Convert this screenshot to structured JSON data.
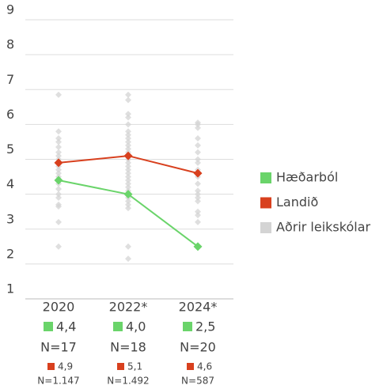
{
  "chart_data": {
    "type": "line",
    "categories": [
      "2020",
      "2022*",
      "2024*"
    ],
    "ylim": [
      1,
      9
    ],
    "yticks": [
      1,
      2,
      3,
      4,
      5,
      6,
      7,
      8,
      9
    ],
    "grid": true,
    "legend": "right",
    "series": [
      {
        "name": "Hæðarból",
        "color": "#6ad46a",
        "values": [
          4.4,
          4.0,
          2.5
        ],
        "value_labels": [
          "4,4",
          "4,0",
          "2,5"
        ],
        "n": [
          "N=17",
          "N=18",
          "N=20"
        ]
      },
      {
        "name": "Landið",
        "color": "#d8401e",
        "values": [
          4.9,
          5.1,
          4.6
        ],
        "value_labels": [
          "4,9",
          "5,1",
          "4,6"
        ],
        "n": [
          "N=1.147",
          "N=1.492",
          "N=587"
        ]
      },
      {
        "name": "Aðrir leikskólar",
        "color": "#d4d4d4",
        "type": "scatter",
        "values": [
          [
            6.85,
            5.8,
            5.6,
            5.5,
            5.35,
            5.2,
            5.1,
            5.0,
            4.9,
            4.8,
            4.7,
            4.6,
            4.5,
            4.4,
            4.3,
            4.15,
            4.0,
            3.9,
            3.7,
            3.65,
            3.2,
            2.5
          ],
          [
            6.85,
            6.7,
            6.3,
            6.2,
            6.0,
            5.8,
            5.7,
            5.6,
            5.5,
            5.4,
            5.3,
            5.2,
            5.1,
            5.0,
            4.9,
            4.8,
            4.7,
            4.6,
            4.5,
            4.4,
            4.3,
            4.2,
            4.1,
            4.0,
            3.9,
            3.8,
            3.7,
            3.6,
            2.5,
            2.15
          ],
          [
            6.05,
            6.0,
            5.9,
            5.6,
            5.4,
            5.2,
            5.0,
            4.9,
            4.7,
            4.5,
            4.3,
            4.1,
            4.0,
            3.9,
            3.8,
            3.5,
            3.4,
            3.2
          ]
        ]
      }
    ]
  }
}
